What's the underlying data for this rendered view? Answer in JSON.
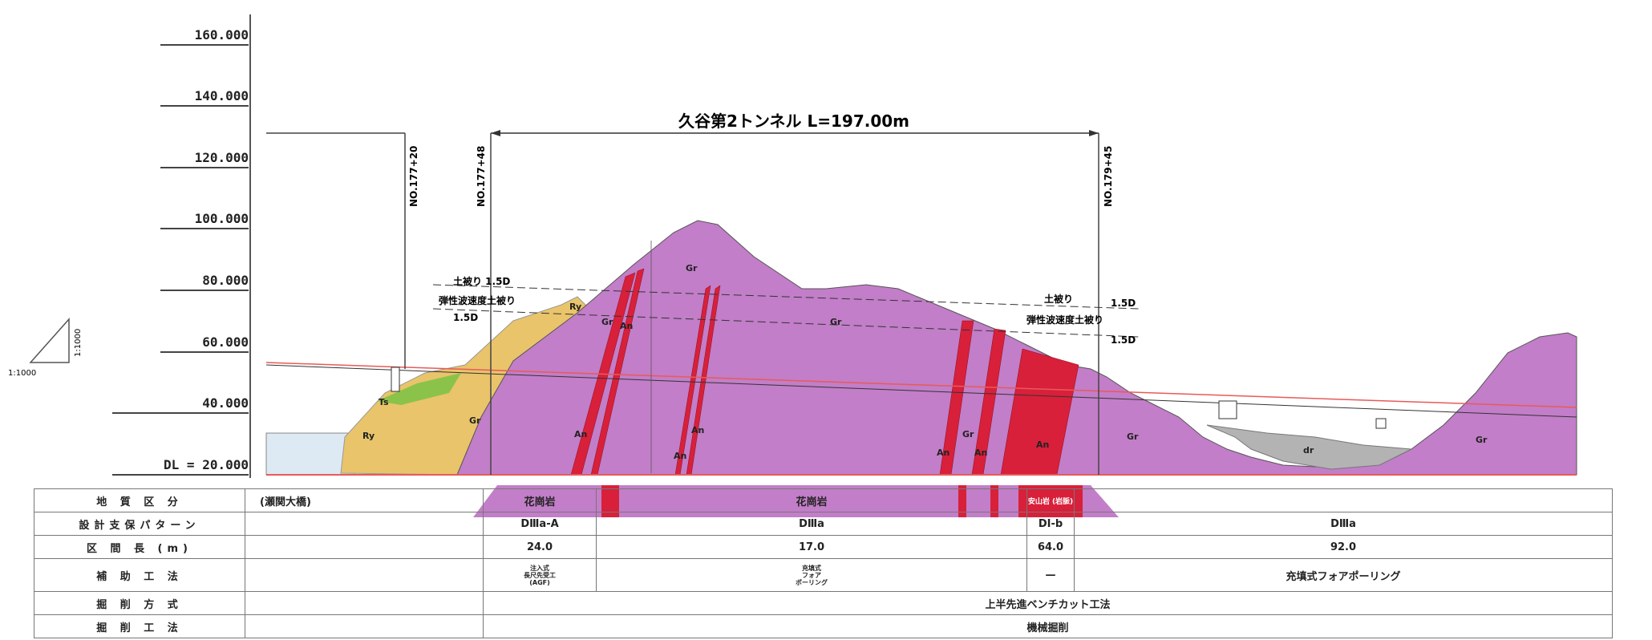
{
  "elevations": [
    "160.000",
    "140.000",
    "120.000",
    "100.000",
    "80.000",
    "60.000",
    "40.000",
    "DL = 20.000"
  ],
  "scale": {
    "v": "1:1000",
    "h": "1:1000"
  },
  "tunnel_title": "久谷第2トンネル L=197.00m",
  "stations": [
    "NO.177+20",
    "NO.177+48",
    "NO.179+45"
  ],
  "cover_labels": {
    "left_soil": "土被り 1.5D",
    "left_wave": "弾性波速度土被り",
    "left_wave_val": "1.5D",
    "right_soil": "土被り",
    "right_soil_val": "1.5D",
    "right_wave": "弾性波速度土被り",
    "right_wave_val": "1.5D"
  },
  "geo_labels": [
    "Gr",
    "Gr",
    "Gr",
    "Gr",
    "Gr",
    "Gr",
    "Gr",
    "An",
    "An",
    "An",
    "An",
    "An",
    "An",
    "An",
    "Ry",
    "Ry",
    "Ts",
    "dr"
  ],
  "table": {
    "rows": [
      {
        "header": "地 質 区 分",
        "bridge": "(瀬関大橋)",
        "cells": [
          "花崗岩",
          "花崗岩",
          "安山岩\n(岩脈)"
        ]
      },
      {
        "header": "設計支保パターン",
        "cells": [
          "DⅢa-A",
          "DⅢa",
          "DⅠ-b",
          "DⅢa"
        ]
      },
      {
        "header": "区 間 長 (m)",
        "cells": [
          "24.0",
          "17.0",
          "64.0",
          "92.0"
        ]
      },
      {
        "header": "補 助 工 法",
        "cells": [
          "注入式\n長尺先受工\n(AGF)",
          "充填式\nフォア\nポーリング",
          "—",
          "充填式フォアポーリング"
        ]
      },
      {
        "header": "掘 削 方 式",
        "cells": [
          "上半先進ベンチカット工法"
        ]
      },
      {
        "header": "掘 削 工 法",
        "cells": [
          "機械掘削"
        ]
      }
    ]
  },
  "colors": {
    "granite": "#c27ec8",
    "andesite": "#d8203a",
    "talus": "#e9c46a",
    "debris": "#b3b3b3",
    "green": "#8bc34a"
  }
}
